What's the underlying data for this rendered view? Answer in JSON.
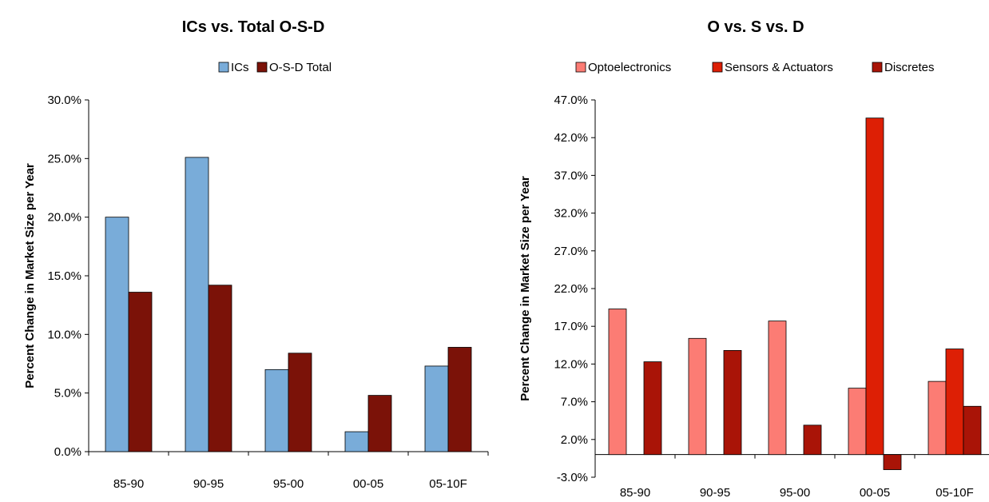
{
  "chart_data": [
    {
      "type": "bar",
      "title": "ICs vs. Total O-S-D",
      "xlabel": "",
      "ylabel": "Percent Change in Market Size per Year",
      "categories": [
        "85-90",
        "90-95",
        "95-00",
        "00-05",
        "05-10F"
      ],
      "ylim": [
        0,
        30
      ],
      "yticks": [
        0,
        5,
        10,
        15,
        20,
        25,
        30
      ],
      "ytick_labels": [
        "0.0%",
        "5.0%",
        "10.0%",
        "15.0%",
        "20.0%",
        "25.0%",
        "30.0%"
      ],
      "legend_position": "top-center",
      "grid": false,
      "series": [
        {
          "name": "ICs",
          "color": "#79acd9",
          "values": [
            20.0,
            25.1,
            7.0,
            1.7,
            7.3
          ]
        },
        {
          "name": "O-S-D Total",
          "color": "#7b1208",
          "values": [
            13.6,
            14.2,
            8.4,
            4.8,
            8.9
          ]
        }
      ]
    },
    {
      "type": "bar",
      "title": "O vs. S vs. D",
      "xlabel": "",
      "ylabel": "Percent Change in Market Size per Year",
      "categories": [
        "85-90",
        "90-95",
        "95-00",
        "00-05",
        "05-10F"
      ],
      "ylim": [
        -3,
        47
      ],
      "yticks": [
        -3,
        2,
        7,
        12,
        17,
        22,
        27,
        32,
        37,
        42,
        47
      ],
      "ytick_labels": [
        "-3.0%",
        "2.0%",
        "7.0%",
        "12.0%",
        "17.0%",
        "22.0%",
        "27.0%",
        "32.0%",
        "37.0%",
        "42.0%",
        "47.0%"
      ],
      "legend_position": "top-center",
      "grid": false,
      "series": [
        {
          "name": "Optoelectronics",
          "color": "#fc7c74",
          "values": [
            19.3,
            15.4,
            17.7,
            8.8,
            9.7
          ]
        },
        {
          "name": "Sensors & Actuators",
          "color": "#dd1f05",
          "values": [
            null,
            null,
            null,
            44.6,
            14.0
          ]
        },
        {
          "name": "Discretes",
          "color": "#a91407",
          "values": [
            12.3,
            13.8,
            3.9,
            -2.0,
            6.4
          ]
        }
      ]
    }
  ]
}
